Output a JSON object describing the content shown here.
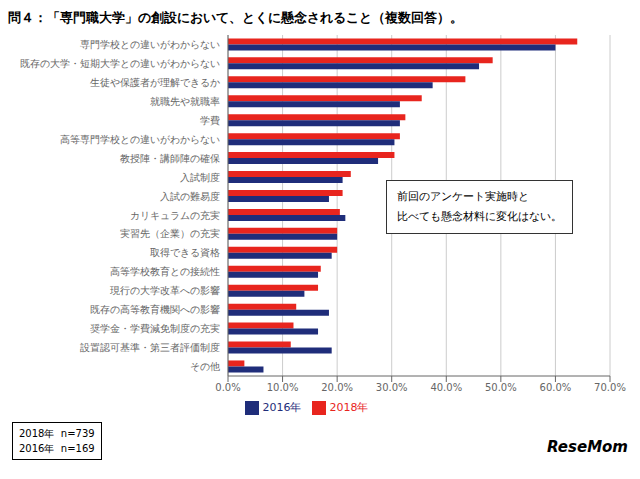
{
  "chart_data": {
    "type": "bar",
    "orientation": "horizontal",
    "title": "問４：「専門職大学」の創設において、とくに懸念されること（複数回答）。",
    "categories": [
      "専門学校との違いがわからない",
      "既存の大学・短期大学との違いがわからない",
      "生徒や保護者が理解できるか",
      "就職先や就職率",
      "学費",
      "高等専門学校との違いがわからない",
      "教授陣・講師陣の確保",
      "入試制度",
      "入試の難易度",
      "カリキュラムの充実",
      "実習先（企業）の充実",
      "取得できる資格",
      "高等学校教育との接続性",
      "現行の大学改革への影響",
      "既存の高等教育機関への影響",
      "奨学金・学費減免制度の充実",
      "設置認可基準・第三者評価制度",
      "その他"
    ],
    "series": [
      {
        "name": "2018年",
        "color": "#e8251e",
        "values": [
          64.0,
          48.5,
          43.5,
          35.5,
          32.5,
          31.5,
          30.5,
          22.5,
          21.0,
          20.5,
          20.0,
          20.0,
          17.0,
          16.5,
          12.5,
          12.0,
          11.5,
          3.0
        ]
      },
      {
        "name": "2016年",
        "color": "#1f2d7a",
        "values": [
          60.0,
          46.0,
          37.5,
          31.5,
          31.5,
          30.5,
          27.5,
          21.0,
          18.5,
          21.5,
          20.0,
          19.0,
          16.5,
          14.0,
          18.5,
          16.5,
          19.0,
          6.5
        ]
      }
    ],
    "xlim": [
      0,
      70
    ],
    "xticks": [
      {
        "value": 0,
        "label": "0.0%"
      },
      {
        "value": 10,
        "label": "10.0%"
      },
      {
        "value": 20,
        "label": "20.0%"
      },
      {
        "value": 30,
        "label": "30.0%"
      },
      {
        "value": 40,
        "label": "40.0%"
      },
      {
        "value": 50,
        "label": "50.0%"
      },
      {
        "value": 60,
        "label": "60.0%"
      },
      {
        "value": 70,
        "label": "70.0%"
      }
    ],
    "grid": true,
    "legend": "bottom",
    "annotations": [
      "前回のアンケート実施時と",
      "比べても懸念材料に変化はない。",
      "2018年  n=739",
      "2016年  n=169",
      "ReseMom"
    ]
  }
}
